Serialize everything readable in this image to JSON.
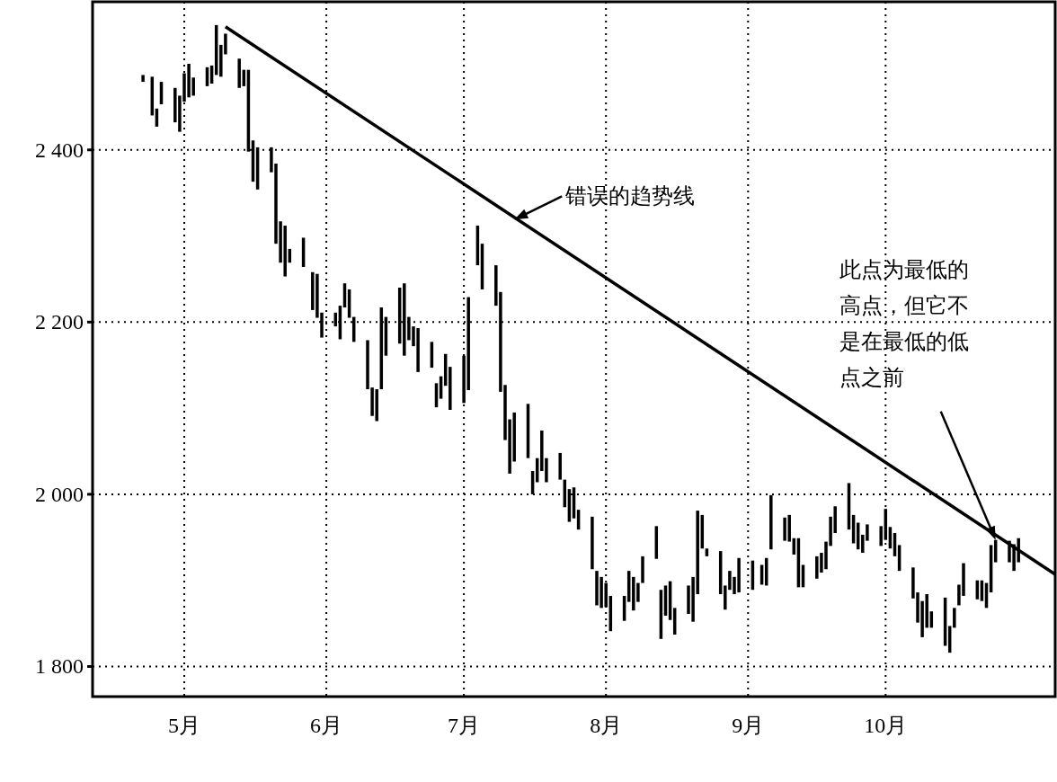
{
  "chart_data": {
    "type": "bar",
    "xlim": [
      "--04-11",
      "--11-07"
    ],
    "ylim": [
      1765,
      2572
    ],
    "xticks": [
      {
        "value": "--05-01",
        "label": "5月"
      },
      {
        "value": "--06-01",
        "label": "6月"
      },
      {
        "value": "--07-01",
        "label": "7月"
      },
      {
        "value": "--08-01",
        "label": "8月"
      },
      {
        "value": "--09-01",
        "label": "9月"
      },
      {
        "value": "--10-01",
        "label": "10月"
      }
    ],
    "yticks": [
      {
        "value": 1800,
        "label": "1 800"
      },
      {
        "value": 2000,
        "label": "2 000"
      },
      {
        "value": 2200,
        "label": "2 200"
      },
      {
        "value": 2400,
        "label": "2 400"
      }
    ],
    "grid": true,
    "line_style": "dotted",
    "series": [
      {
        "color": "#000000",
        "x": [
          "--04-22",
          "--04-24",
          "--04-25",
          "--04-26",
          "--04-29",
          "--04-30",
          "--05-01",
          "--05-02",
          "--05-03",
          "--05-06",
          "--05-07",
          "--05-08",
          "--05-09",
          "--05-10",
          "--05-13",
          "--05-14",
          "--05-15",
          "--05-16",
          "--05-17",
          "--05-20",
          "--05-21",
          "--05-22",
          "--05-23",
          "--05-24",
          "--05-27",
          "--05-29",
          "--05-30",
          "--05-31",
          "--06-03",
          "--06-04",
          "--06-05",
          "--06-06",
          "--06-07",
          "--06-10",
          "--06-11",
          "--06-12",
          "--06-13",
          "--06-14",
          "--06-17",
          "--06-18",
          "--06-19",
          "--06-20",
          "--06-21",
          "--06-24",
          "--06-25",
          "--06-26",
          "--06-27",
          "--06-28",
          "--07-01",
          "--07-02",
          "--07-04",
          "--07-05",
          "--07-08",
          "--07-09",
          "--07-10",
          "--07-11",
          "--07-12",
          "--07-15",
          "--07-16",
          "--07-17",
          "--07-18",
          "--07-19",
          "--07-22",
          "--07-23",
          "--07-24",
          "--07-25",
          "--07-26",
          "--07-29",
          "--07-30",
          "--07-31",
          "--08-01",
          "--08-02",
          "--08-05",
          "--08-06",
          "--08-07",
          "--08-08",
          "--08-09",
          "--08-12",
          "--08-13",
          "--08-14",
          "--08-15",
          "--08-16",
          "--08-19",
          "--08-20",
          "--08-21",
          "--08-22",
          "--08-23",
          "--08-26",
          "--08-27",
          "--08-28",
          "--08-29",
          "--08-30",
          "--09-02",
          "--09-04",
          "--09-05",
          "--09-06",
          "--09-09",
          "--09-10",
          "--09-11",
          "--09-12",
          "--09-13",
          "--09-16",
          "--09-17",
          "--09-18",
          "--09-19",
          "--09-20",
          "--09-23",
          "--09-24",
          "--09-25",
          "--09-26",
          "--09-27",
          "--09-30",
          "--10-01",
          "--10-02",
          "--10-03",
          "--10-04",
          "--10-07",
          "--10-08",
          "--10-09",
          "--10-10",
          "--10-11",
          "--10-14",
          "--10-15",
          "--10-16",
          "--10-17",
          "--10-18",
          "--10-21",
          "--10-22",
          "--10-23",
          "--10-24",
          "--10-25",
          "--10-28",
          "--10-29",
          "--10-30"
        ],
        "base": [
          2479,
          2440,
          2427,
          2453,
          2432,
          2421,
          2456,
          2461,
          2463,
          2474,
          2477,
          2487,
          2485,
          2511,
          2472,
          2474,
          2398,
          2363,
          2354,
          2374,
          2291,
          2269,
          2253,
          2269,
          2264,
          2214,
          2205,
          2182,
          2195,
          2180,
          2217,
          2205,
          2177,
          2122,
          2091,
          2085,
          2122,
          2161,
          2175,
          2161,
          2179,
          2172,
          2142,
          2147,
          2101,
          2111,
          2126,
          2098,
          2106,
          2121,
          2266,
          2238,
          2219,
          2119,
          2063,
          2024,
          2038,
          2042,
          2000,
          2014,
          2027,
          2014,
          2017,
          1985,
          1968,
          1972,
          1959,
          1913,
          1871,
          1868,
          1869,
          1841,
          1853,
          1875,
          1865,
          1875,
          1897,
          1925,
          1832,
          1859,
          1854,
          1837,
          1861,
          1852,
          1884,
          1937,
          1928,
          1884,
          1866,
          1889,
          1884,
          1886,
          1889,
          1895,
          1894,
          1936,
          1946,
          1945,
          1930,
          1892,
          1892,
          1902,
          1909,
          1913,
          1940,
          1955,
          1959,
          1943,
          1936,
          1932,
          1946,
          1940,
          1947,
          1937,
          1928,
          1911,
          1879,
          1851,
          1834,
          1845,
          1845,
          1824,
          1816,
          1845,
          1871,
          1882,
          1878,
          1876,
          1868,
          1886,
          1921,
          1921,
          1911,
          1921
        ],
        "values": [
          8,
          45,
          21,
          26,
          40,
          42,
          33,
          39,
          21,
          22,
          21,
          58,
          37,
          24,
          34,
          19,
          95,
          48,
          49,
          29,
          93,
          48,
          59,
          16,
          34,
          44,
          51,
          29,
          16,
          39,
          28,
          33,
          29,
          57,
          33,
          37,
          95,
          45,
          65,
          84,
          27,
          23,
          51,
          30,
          28,
          26,
          37,
          50,
          55,
          108,
          46,
          53,
          47,
          116,
          64,
          63,
          57,
          63,
          27,
          28,
          47,
          28,
          31,
          32,
          38,
          36,
          23,
          61,
          40,
          36,
          28,
          41,
          29,
          36,
          39,
          22,
          31,
          38,
          57,
          35,
          45,
          31,
          33,
          52,
          97,
          39,
          9,
          50,
          28,
          22,
          20,
          40,
          34,
          23,
          32,
          63,
          27,
          31,
          19,
          57,
          26,
          26,
          23,
          32,
          34,
          31,
          54,
          33,
          31,
          21,
          19,
          23,
          36,
          25,
          27,
          30,
          36,
          35,
          42,
          39,
          19,
          56,
          31,
          23,
          24,
          38,
          22,
          24,
          29,
          55,
          26,
          25,
          31,
          28
        ]
      },
      {
        "type": "line",
        "color": "#000000",
        "line_style": "solid",
        "x": [
          "--05-10",
          "--11-07"
        ],
        "values": [
          2543,
          1907
        ]
      }
    ],
    "annotations": [
      {
        "text": "错误的趋势线",
        "x": "--07-12",
        "y": 2319
      },
      {
        "text": "此点为最低的高点，但它不是在最低的低点之前",
        "x": "--10-25",
        "y": 1947
      }
    ]
  }
}
